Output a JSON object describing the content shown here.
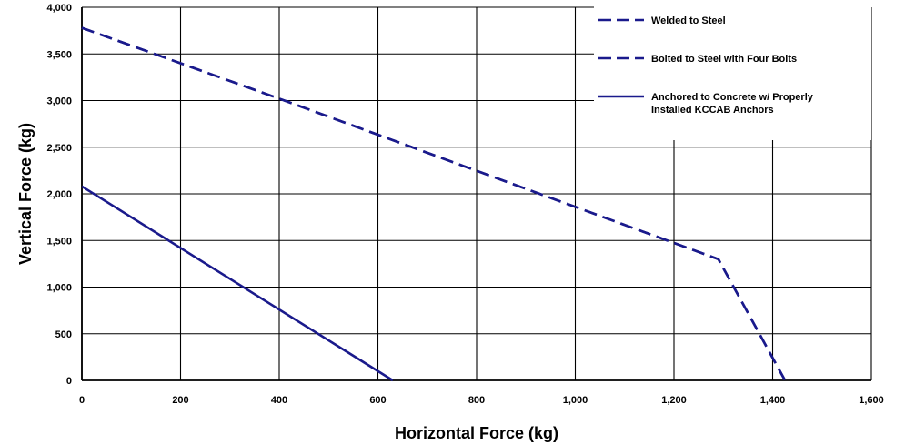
{
  "chart_data": {
    "type": "line",
    "title": "",
    "xlabel": "Horizontal Force (kg)",
    "ylabel": "Vertical Force (kg)",
    "xlim": [
      0,
      1600
    ],
    "ylim": [
      0,
      4000
    ],
    "xticks": [
      "0",
      "200",
      "400",
      "600",
      "800",
      "1,000",
      "1,200",
      "1,400",
      "1,600"
    ],
    "yticks": [
      "0",
      "500",
      "1,000",
      "1,500",
      "2,000",
      "2,500",
      "3,000",
      "3,500",
      "4,000"
    ],
    "grid": true,
    "legend_position": "top-right",
    "colors": {
      "series": "#1a1a8c",
      "grid": "#000000"
    },
    "series": [
      {
        "name": "Welded to Steel",
        "style": "dashed",
        "points": [
          [
            0,
            3780
          ],
          [
            400,
            3020
          ],
          [
            1290,
            1300
          ],
          [
            1425,
            0
          ]
        ]
      },
      {
        "name": "Bolted to Steel with Four Bolts",
        "style": "dashed",
        "points": [
          [
            0,
            3780
          ],
          [
            400,
            3020
          ],
          [
            1290,
            1300
          ],
          [
            1425,
            0
          ]
        ]
      },
      {
        "name": "Anchored to Concrete  w/ Properly\nInstalled KCCAB  Anchors",
        "style": "solid",
        "points": [
          [
            0,
            2080
          ],
          [
            630,
            0
          ]
        ]
      }
    ]
  }
}
